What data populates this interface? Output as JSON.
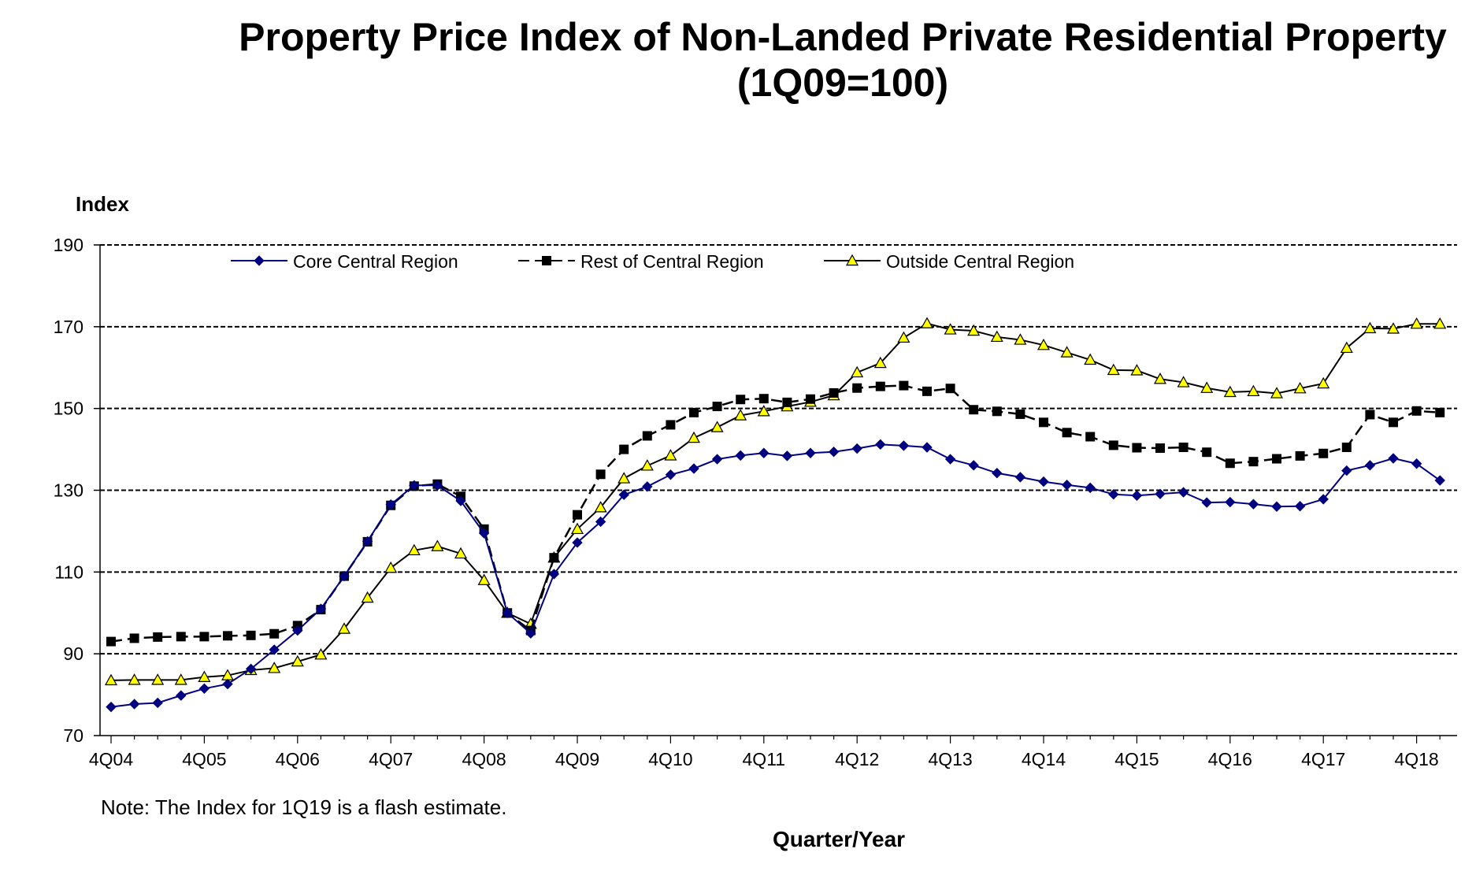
{
  "title_line1": "Property Price Index of Non-Landed Private Residential Property",
  "title_line2": "(1Q09=100)",
  "note": "Note: The Index for 1Q19 is a flash estimate.",
  "colors": {
    "core": "#000080",
    "rest": "#000000",
    "outside": "#ffff00",
    "grid": "#000000"
  },
  "chart_data": {
    "type": "line",
    "title": "Property Price Index of Non-Landed Private Residential Property (1Q09=100)",
    "xlabel": "Quarter/Year",
    "ylabel": "Index",
    "ylim": [
      70,
      190
    ],
    "yticks": [
      70,
      90,
      110,
      130,
      150,
      170,
      190
    ],
    "x_tick_labels": [
      "4Q04",
      "4Q05",
      "4Q06",
      "4Q07",
      "4Q08",
      "4Q09",
      "4Q10",
      "4Q11",
      "4Q12",
      "4Q13",
      "4Q14",
      "4Q15",
      "4Q16",
      "4Q17",
      "4Q18"
    ],
    "quarters_count": 58,
    "legend_position": "top",
    "grid": "horizontal dashed",
    "series": [
      {
        "name": "Core Central Region",
        "marker": "diamond",
        "values": [
          77.0,
          77.7,
          78.0,
          79.8,
          81.5,
          82.6,
          86.3,
          91.0,
          95.7,
          101.0,
          109.0,
          117.5,
          126.5,
          131.2,
          131.2,
          127.4,
          119.5,
          100.0,
          95.0,
          109.5,
          117.2,
          122.3,
          128.9,
          130.9,
          133.8,
          135.3,
          137.6,
          138.5,
          139.1,
          138.4,
          139.1,
          139.4,
          140.2,
          141.2,
          140.9,
          140.5,
          137.6,
          136.1,
          134.2,
          133.2,
          132.1,
          131.3,
          130.6,
          129.0,
          128.7,
          129.1,
          129.5,
          127.0,
          127.1,
          126.6,
          126.0,
          126.1,
          127.8,
          134.8,
          136.1,
          137.8,
          136.5,
          132.4
        ]
      },
      {
        "name": "Rest of Central Region",
        "marker": "square",
        "dashed": true,
        "values": [
          93.0,
          93.8,
          94.1,
          94.2,
          94.2,
          94.4,
          94.5,
          94.9,
          96.9,
          100.8,
          109.0,
          117.4,
          126.3,
          131.0,
          131.5,
          128.5,
          120.5,
          100.0,
          95.7,
          113.5,
          124.0,
          133.9,
          140.0,
          143.3,
          146.0,
          149.0,
          150.5,
          152.2,
          152.4,
          151.5,
          152.3,
          153.8,
          155.0,
          155.4,
          155.6,
          154.2,
          154.9,
          149.7,
          149.3,
          148.6,
          146.6,
          144.1,
          143.1,
          141.0,
          140.4,
          140.3,
          140.5,
          139.3,
          136.6,
          137.0,
          137.7,
          138.4,
          139.0,
          140.5,
          148.5,
          146.6,
          149.4,
          149.0
        ]
      },
      {
        "name": "Outside Central Region",
        "marker": "triangle",
        "values": [
          83.5,
          83.6,
          83.6,
          83.6,
          84.3,
          84.7,
          86.0,
          86.5,
          88.1,
          89.8,
          96.1,
          103.7,
          111.0,
          115.3,
          116.3,
          114.5,
          108.0,
          100.0,
          97.3,
          113.5,
          120.5,
          125.8,
          132.9,
          136.0,
          138.5,
          142.8,
          145.4,
          148.3,
          149.3,
          150.5,
          151.6,
          153.2,
          158.8,
          161.1,
          167.3,
          170.8,
          169.3,
          169.0,
          167.5,
          166.8,
          165.5,
          163.7,
          161.9,
          159.4,
          159.3,
          157.2,
          156.4,
          155.0,
          154.0,
          154.2,
          153.7,
          154.9,
          156.1,
          164.8,
          169.6,
          169.5,
          170.7,
          170.7
        ]
      }
    ]
  }
}
